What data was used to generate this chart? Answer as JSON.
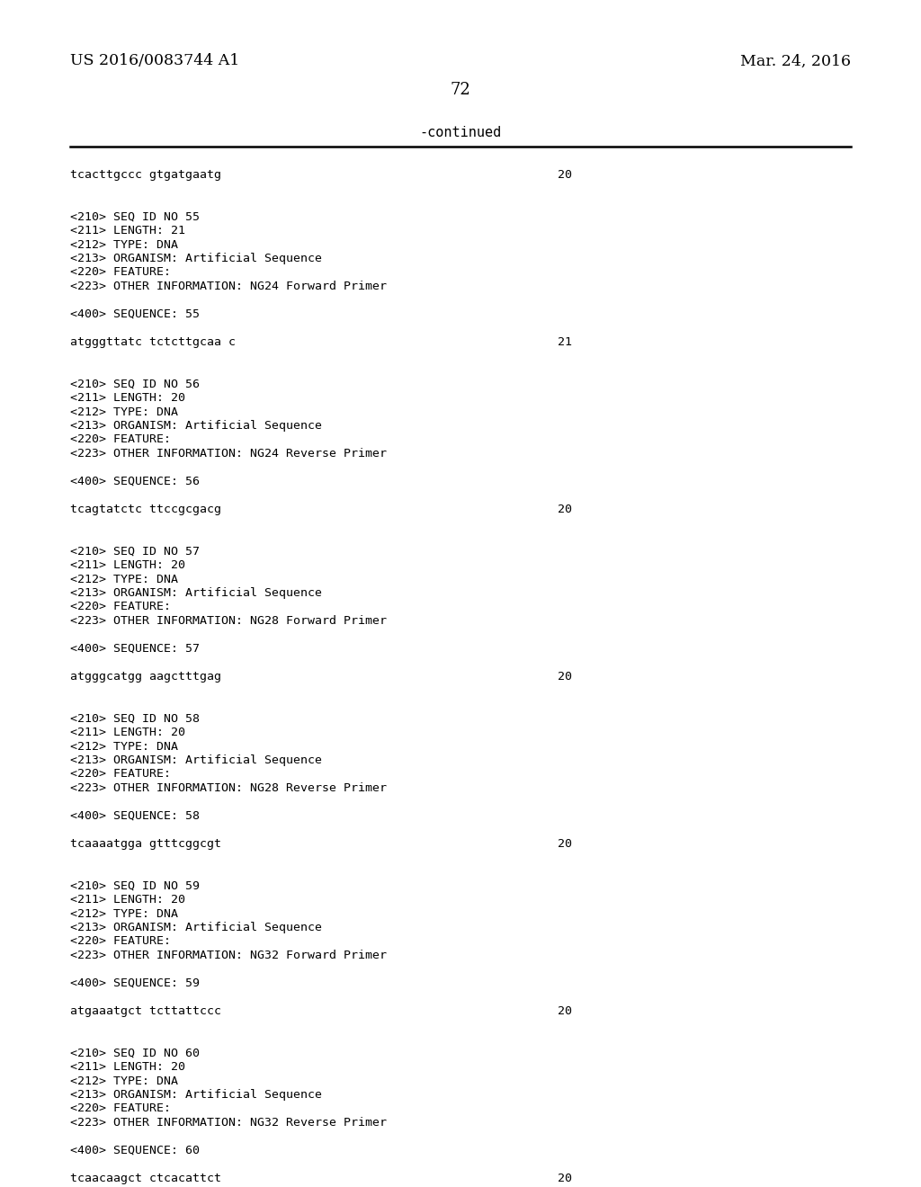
{
  "background_color": "#ffffff",
  "header_left": "US 2016/0083744 A1",
  "header_right": "Mar. 24, 2016",
  "page_number": "72",
  "continued_text": "-continued",
  "content_lines": [
    {
      "text": "tcacttgccc gtgatgaatg",
      "num": "20"
    },
    {
      "text": "",
      "num": null
    },
    {
      "text": "",
      "num": null
    },
    {
      "text": "<210> SEQ ID NO 55",
      "num": null
    },
    {
      "text": "<211> LENGTH: 21",
      "num": null
    },
    {
      "text": "<212> TYPE: DNA",
      "num": null
    },
    {
      "text": "<213> ORGANISM: Artificial Sequence",
      "num": null
    },
    {
      "text": "<220> FEATURE:",
      "num": null
    },
    {
      "text": "<223> OTHER INFORMATION: NG24 Forward Primer",
      "num": null
    },
    {
      "text": "",
      "num": null
    },
    {
      "text": "<400> SEQUENCE: 55",
      "num": null
    },
    {
      "text": "",
      "num": null
    },
    {
      "text": "atgggttatc tctcttgcaa c",
      "num": "21"
    },
    {
      "text": "",
      "num": null
    },
    {
      "text": "",
      "num": null
    },
    {
      "text": "<210> SEQ ID NO 56",
      "num": null
    },
    {
      "text": "<211> LENGTH: 20",
      "num": null
    },
    {
      "text": "<212> TYPE: DNA",
      "num": null
    },
    {
      "text": "<213> ORGANISM: Artificial Sequence",
      "num": null
    },
    {
      "text": "<220> FEATURE:",
      "num": null
    },
    {
      "text": "<223> OTHER INFORMATION: NG24 Reverse Primer",
      "num": null
    },
    {
      "text": "",
      "num": null
    },
    {
      "text": "<400> SEQUENCE: 56",
      "num": null
    },
    {
      "text": "",
      "num": null
    },
    {
      "text": "tcagtatctc ttccgcgacg",
      "num": "20"
    },
    {
      "text": "",
      "num": null
    },
    {
      "text": "",
      "num": null
    },
    {
      "text": "<210> SEQ ID NO 57",
      "num": null
    },
    {
      "text": "<211> LENGTH: 20",
      "num": null
    },
    {
      "text": "<212> TYPE: DNA",
      "num": null
    },
    {
      "text": "<213> ORGANISM: Artificial Sequence",
      "num": null
    },
    {
      "text": "<220> FEATURE:",
      "num": null
    },
    {
      "text": "<223> OTHER INFORMATION: NG28 Forward Primer",
      "num": null
    },
    {
      "text": "",
      "num": null
    },
    {
      "text": "<400> SEQUENCE: 57",
      "num": null
    },
    {
      "text": "",
      "num": null
    },
    {
      "text": "atgggcatgg aagctttgag",
      "num": "20"
    },
    {
      "text": "",
      "num": null
    },
    {
      "text": "",
      "num": null
    },
    {
      "text": "<210> SEQ ID NO 58",
      "num": null
    },
    {
      "text": "<211> LENGTH: 20",
      "num": null
    },
    {
      "text": "<212> TYPE: DNA",
      "num": null
    },
    {
      "text": "<213> ORGANISM: Artificial Sequence",
      "num": null
    },
    {
      "text": "<220> FEATURE:",
      "num": null
    },
    {
      "text": "<223> OTHER INFORMATION: NG28 Reverse Primer",
      "num": null
    },
    {
      "text": "",
      "num": null
    },
    {
      "text": "<400> SEQUENCE: 58",
      "num": null
    },
    {
      "text": "",
      "num": null
    },
    {
      "text": "tcaaaatgga gtttcggcgt",
      "num": "20"
    },
    {
      "text": "",
      "num": null
    },
    {
      "text": "",
      "num": null
    },
    {
      "text": "<210> SEQ ID NO 59",
      "num": null
    },
    {
      "text": "<211> LENGTH: 20",
      "num": null
    },
    {
      "text": "<212> TYPE: DNA",
      "num": null
    },
    {
      "text": "<213> ORGANISM: Artificial Sequence",
      "num": null
    },
    {
      "text": "<220> FEATURE:",
      "num": null
    },
    {
      "text": "<223> OTHER INFORMATION: NG32 Forward Primer",
      "num": null
    },
    {
      "text": "",
      "num": null
    },
    {
      "text": "<400> SEQUENCE: 59",
      "num": null
    },
    {
      "text": "",
      "num": null
    },
    {
      "text": "atgaaatgct tcttattccc",
      "num": "20"
    },
    {
      "text": "",
      "num": null
    },
    {
      "text": "",
      "num": null
    },
    {
      "text": "<210> SEQ ID NO 60",
      "num": null
    },
    {
      "text": "<211> LENGTH: 20",
      "num": null
    },
    {
      "text": "<212> TYPE: DNA",
      "num": null
    },
    {
      "text": "<213> ORGANISM: Artificial Sequence",
      "num": null
    },
    {
      "text": "<220> FEATURE:",
      "num": null
    },
    {
      "text": "<223> OTHER INFORMATION: NG32 Reverse Primer",
      "num": null
    },
    {
      "text": "",
      "num": null
    },
    {
      "text": "<400> SEQUENCE: 60",
      "num": null
    },
    {
      "text": "",
      "num": null
    },
    {
      "text": "tcaacaagct ctcacattct",
      "num": "20"
    }
  ],
  "font_size_header": 12.5,
  "font_size_page": 13,
  "font_size_continued": 11,
  "font_size_content": 9.5
}
